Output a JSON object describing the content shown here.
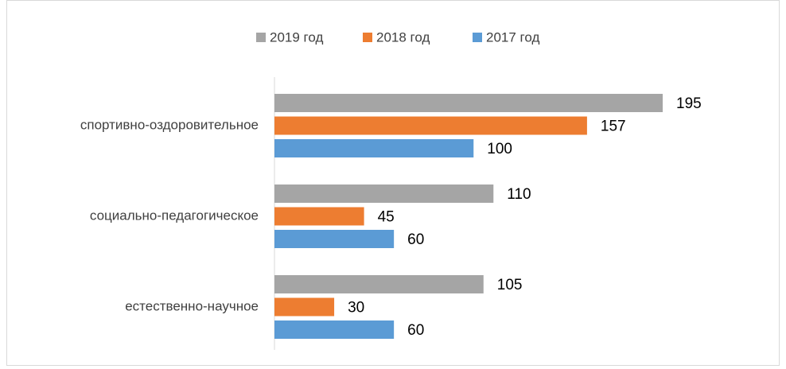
{
  "chart_data": {
    "type": "barh",
    "categories": [
      "спортивно-оздоровительное",
      "социально-педагогическое",
      "естественно-научное"
    ],
    "series": [
      {
        "name": "2019 год",
        "color": "#a5a5a5",
        "values": [
          195,
          110,
          105
        ]
      },
      {
        "name": "2018 год",
        "color": "#ed7d31",
        "values": [
          157,
          45,
          30
        ]
      },
      {
        "name": "2017 год",
        "color": "#5b9bd5",
        "values": [
          100,
          60,
          60
        ]
      }
    ],
    "legend": "top"
  }
}
